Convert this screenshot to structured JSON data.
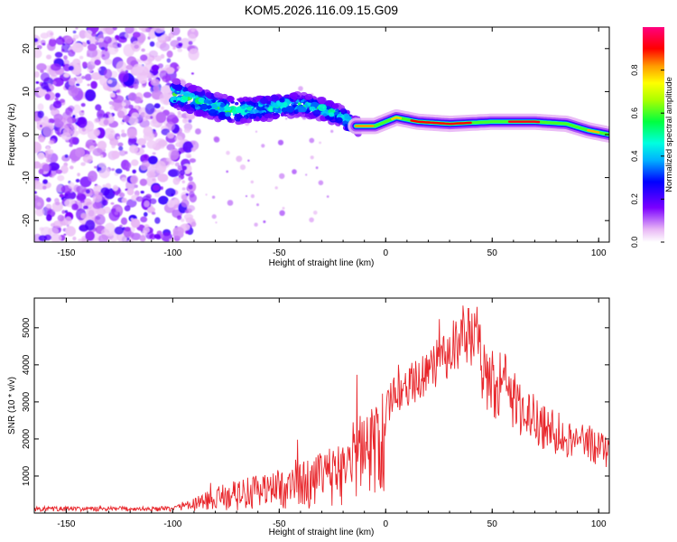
{
  "title": "KOM5.2026.116.09.15.G09",
  "colors": {
    "line": "#e8262b",
    "axis": "#000000"
  },
  "chart_data": [
    {
      "type": "heatmap",
      "name": "spectrogram",
      "xlabel": "Height of straight line (km)",
      "ylabel": "Frequency (Hz)",
      "xlim": [
        -165,
        105
      ],
      "ylim": [
        -25,
        25
      ],
      "xticks": [
        -150,
        -100,
        -50,
        0,
        50,
        100
      ],
      "yticks": [
        -20,
        -10,
        0,
        10,
        20
      ],
      "ridge": {
        "description_points": [
          [
            -100,
            9.5
          ],
          [
            -90,
            8
          ],
          [
            -80,
            6.5
          ],
          [
            -70,
            5.5
          ],
          [
            -60,
            6
          ],
          [
            -50,
            6.5
          ],
          [
            -40,
            7
          ],
          [
            -30,
            6
          ],
          [
            -20,
            4
          ],
          [
            -15,
            2
          ],
          [
            -5,
            2
          ],
          [
            5,
            4
          ],
          [
            15,
            3
          ],
          [
            30,
            2.5
          ],
          [
            50,
            3
          ],
          [
            70,
            3
          ],
          [
            85,
            2.5
          ],
          [
            95,
            1
          ],
          [
            105,
            0
          ]
        ]
      },
      "colorbar": {
        "label": "Normalized spectral amplitude",
        "range": [
          0,
          1
        ],
        "ticks": [
          "0.0",
          "0.2",
          "0.4",
          "0.6",
          "0.8"
        ]
      }
    },
    {
      "type": "line",
      "name": "snr",
      "xlabel": "Height of straight line (km)",
      "ylabel": "SNR (10 * v/v)",
      "xlim": [
        -165,
        105
      ],
      "ylim": [
        0,
        5800
      ],
      "xticks": [
        -150,
        -100,
        -50,
        0,
        50,
        100
      ],
      "yticks": [
        1000,
        2000,
        3000,
        4000,
        5000
      ],
      "envelope": [
        [
          -165,
          150
        ],
        [
          -100,
          150
        ],
        [
          -90,
          400
        ],
        [
          -75,
          800
        ],
        [
          -60,
          1000
        ],
        [
          -45,
          1200
        ],
        [
          -30,
          1600
        ],
        [
          -20,
          1900
        ],
        [
          -12,
          2800
        ],
        [
          -5,
          3000
        ],
        [
          5,
          3700
        ],
        [
          15,
          4200
        ],
        [
          25,
          4800
        ],
        [
          35,
          5300
        ],
        [
          43,
          5550
        ],
        [
          47,
          4300
        ],
        [
          55,
          4200
        ],
        [
          65,
          3300
        ],
        [
          75,
          2800
        ],
        [
          85,
          2500
        ],
        [
          95,
          2300
        ],
        [
          105,
          2000
        ]
      ]
    }
  ]
}
